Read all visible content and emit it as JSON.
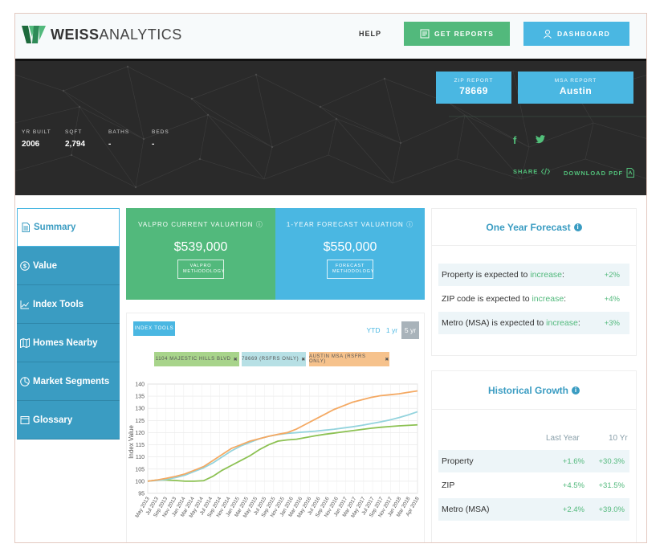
{
  "nav": {
    "logo_bold": "WEISS",
    "logo_light": "ANALYTICS",
    "help": "HELP",
    "get_reports": "GET REPORTS",
    "dashboard": "DASHBOARD"
  },
  "hero": {
    "zip_label": "ZIP REPORT",
    "zip_value": "78669",
    "msa_label": "MSA REPORT",
    "msa_value": "Austin",
    "stats": [
      {
        "label": "YR BUILT",
        "value": "2006"
      },
      {
        "label": "SQFT",
        "value": "2,794"
      },
      {
        "label": "BATHS",
        "value": "-"
      },
      {
        "label": "BEDS",
        "value": "-"
      }
    ],
    "facebook": "f",
    "share": "SHARE",
    "download": "DOWNLOAD PDF"
  },
  "sidebar": {
    "items": [
      {
        "label": "Summary",
        "icon": "document-icon",
        "active": true
      },
      {
        "label": "Value",
        "icon": "dollar-icon"
      },
      {
        "label": "Index Tools",
        "icon": "chart-icon"
      },
      {
        "label": "Homes Nearby",
        "icon": "map-icon"
      },
      {
        "label": "Market Segments",
        "icon": "pie-icon"
      },
      {
        "label": "Glossary",
        "icon": "book-icon"
      }
    ]
  },
  "valuation": {
    "current_title": "VALPRO CURRENT VALUATION",
    "current_value": "$539,000",
    "current_btn": "VALPRO METHODOLOGY",
    "forecast_title": "1-YEAR FORECAST VALUATION",
    "forecast_value": "$550,000",
    "forecast_btn": "FORECAST METHODOLOGY"
  },
  "chart_controls": {
    "index_tools": "INDEX TOOLS",
    "ranges": [
      "YTD",
      "1 yr",
      "5 yr"
    ],
    "selected_range": "5 yr",
    "legend": [
      {
        "label": "1104 MAJESTIC HILLS BLVD",
        "color": "#8cc152"
      },
      {
        "label": "78669 (RSFRS ONLY)",
        "color": "#93d3dd"
      },
      {
        "label": "AUSTIN MSA (RSFRS ONLY)",
        "color": "#f4a963"
      }
    ]
  },
  "chart_data": {
    "type": "line",
    "ylabel": "Index Value",
    "ylim": [
      95,
      140
    ],
    "yticks": [
      95,
      100,
      105,
      110,
      115,
      120,
      125,
      130,
      135,
      140
    ],
    "x": [
      "May 2013",
      "Jul 2013",
      "Sep 2013",
      "Nov 2013",
      "Jan 2014",
      "Mar 2014",
      "May 2014",
      "Jul 2014",
      "Sep 2014",
      "Nov 2014",
      "Jan 2015",
      "Mar 2015",
      "May 2015",
      "Jul 2015",
      "Sep 2015",
      "Nov 2015",
      "Jan 2016",
      "Mar 2016",
      "May 2016",
      "Jul 2016",
      "Sep 2016",
      "Nov 2016",
      "Jan 2017",
      "Mar 2017",
      "May 2017",
      "Jul 2017",
      "Sep 2017",
      "Nov 2017",
      "Jan 2018",
      "Mar 2018"
    ],
    "xticks": [
      "May 2013",
      "Jul 2013",
      "Sep 2013",
      "Nov 2013",
      "Jan 2014",
      "Mar 2014",
      "May 2014",
      "Jul 2014",
      "Sep 2014",
      "Nov 2014",
      "Jan 2015",
      "Mar 2015",
      "May 2015",
      "Jul 2015",
      "Sep 2015",
      "Nov 2015",
      "Jan 2016",
      "Mar 2016",
      "May 2016",
      "Jul 2016",
      "Sep 2016",
      "Nov 2016",
      "Jan 2017",
      "Mar 2017",
      "May 2017",
      "Jul 2017",
      "Sep 2017",
      "Nov 2017",
      "Jan 2018",
      "Mar 2018",
      "Apr 2018"
    ],
    "series": [
      {
        "name": "1104 MAJESTIC HILLS BLVD",
        "color": "#8cc152",
        "values": [
          100,
          100.5,
          100.5,
          100.3,
          100,
          100,
          100.2,
          102,
          104.5,
          106.5,
          108.5,
          110.5,
          113,
          115,
          116.5,
          117,
          117.3,
          118,
          118.7,
          119.3,
          119.8,
          120.3,
          120.8,
          121.3,
          121.8,
          122.2,
          122.5,
          122.8,
          123,
          123.2
        ]
      },
      {
        "name": "78669 (RSFRS ONLY)",
        "color": "#93d3dd",
        "values": [
          100,
          100.3,
          100.8,
          101.5,
          102.5,
          104,
          105.5,
          107.5,
          110,
          112.5,
          114.5,
          116,
          117.5,
          118.5,
          119.2,
          119.7,
          120,
          120.3,
          120.6,
          121,
          121.4,
          121.9,
          122.4,
          123,
          123.7,
          124.4,
          125.2,
          126.2,
          127.3,
          128.6
        ]
      },
      {
        "name": "AUSTIN MSA (RSFRS ONLY)",
        "color": "#f4a963",
        "values": [
          100,
          100.5,
          101.2,
          102,
          103,
          104.5,
          106,
          108.5,
          111,
          113.5,
          115,
          116.5,
          117.5,
          118.5,
          119.3,
          120,
          121.5,
          123.5,
          125.5,
          127.5,
          129.5,
          131,
          132.5,
          133.5,
          134.5,
          135.2,
          135.6,
          136,
          136.6,
          137.2
        ]
      }
    ]
  },
  "forecast_card": {
    "title": "One Year Forecast",
    "rows": [
      {
        "prefix": "Property is expected to",
        "word": "increase",
        "suffix": ":",
        "pct": "+2%"
      },
      {
        "prefix": "ZIP code is expected to",
        "word": "increase",
        "suffix": ":",
        "pct": "+4%"
      },
      {
        "prefix": "Metro (MSA) is expected to",
        "word": "increase",
        "suffix": ":",
        "pct": "+3%"
      }
    ]
  },
  "growth_card": {
    "title": "Historical Growth",
    "col_last_year": "Last Year",
    "col_10yr": "10 Yr",
    "rows": [
      {
        "label": "Property",
        "last_year": "+1.6%",
        "ten_yr": "+30.3%"
      },
      {
        "label": "ZIP",
        "last_year": "+4.5%",
        "ten_yr": "+31.5%"
      },
      {
        "label": "Metro (MSA)",
        "last_year": "+2.4%",
        "ten_yr": "+39.0%"
      }
    ]
  }
}
